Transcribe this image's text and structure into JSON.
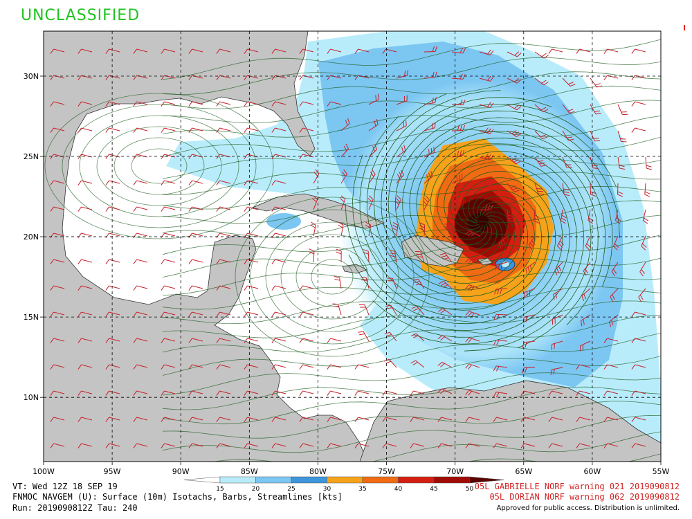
{
  "header": {
    "classification": "UNCLASSIFIED"
  },
  "map": {
    "lat_labels": [
      "30N",
      "25N",
      "20N",
      "15N",
      "10N"
    ],
    "lat_values": [
      30,
      25,
      20,
      15,
      10
    ],
    "lon_labels": [
      "100W",
      "95W",
      "90W",
      "85W",
      "80W",
      "75W",
      "70W",
      "65W",
      "60W",
      "55W"
    ],
    "lon_values": [
      -100,
      -95,
      -90,
      -85,
      -80,
      -75,
      -70,
      -65,
      -60,
      -55
    ],
    "extent": {
      "lon_min": -100,
      "lon_max": -55,
      "lat_min": 6.0,
      "lat_max": 32.8
    },
    "storm_center": {
      "lon": -68,
      "lat": 21
    },
    "land_color": "#c4c4c4",
    "streamline_color": "#1f5e1f",
    "barb_color": "#c8202a"
  },
  "colorbar": {
    "ticks": [
      "15",
      "20",
      "25",
      "30",
      "35",
      "40",
      "45",
      "50"
    ],
    "colors": [
      "#b9ecfb",
      "#7cc6f2",
      "#3d95dc",
      "#f6a21a",
      "#f06b13",
      "#d41f10",
      "#a00c05",
      "#5a0402"
    ]
  },
  "footer": {
    "valid_time": "VT: Wed 12Z 18 SEP 19",
    "product": "FNMOC NAVGEM (U): Surface (10m) Isotachs, Barbs, Streamlines [kts]",
    "run": "Run: 2019090812Z Tau: 240",
    "warning1": "05L GABRIELLE NORF warning 021 2019090812",
    "warning2": "05L DORIAN NORF warning 062 2019090812",
    "approval": "Approved for public access. Distribution is unlimited."
  }
}
